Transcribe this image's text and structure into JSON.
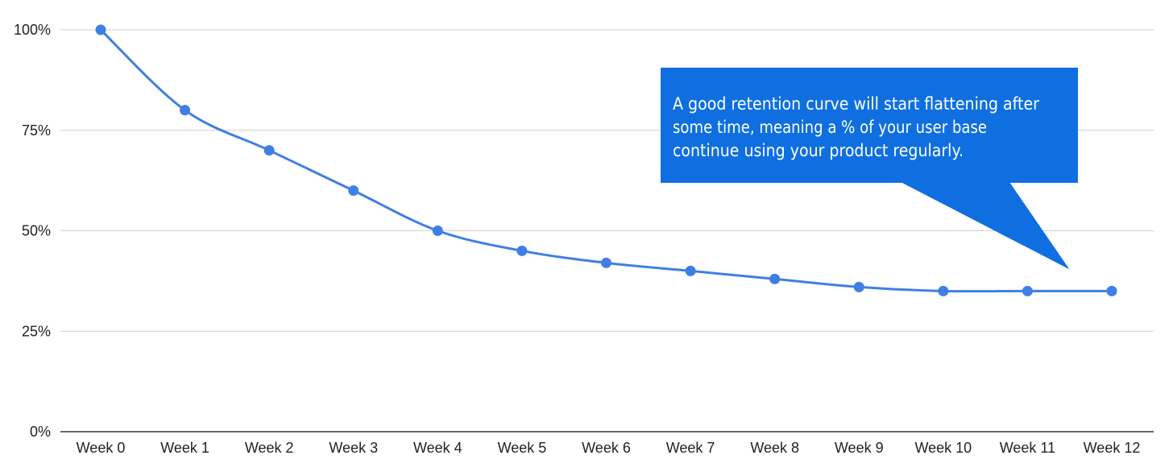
{
  "chart_data": {
    "type": "line",
    "categories": [
      "Week 0",
      "Week 1",
      "Week 2",
      "Week 3",
      "Week 4",
      "Week 5",
      "Week 6",
      "Week 7",
      "Week 8",
      "Week 9",
      "Week 10",
      "Week 11",
      "Week 12"
    ],
    "series": [
      {
        "values": [
          100,
          80,
          70,
          60,
          50,
          45,
          42,
          40,
          38,
          36,
          35,
          35,
          35
        ]
      }
    ],
    "y_ticks": [
      "0%",
      "25%",
      "50%",
      "75%",
      "100%"
    ],
    "ylim": [
      0,
      100
    ],
    "grid": true,
    "line_color": "#3f7fe3",
    "annotation": {
      "lines": [
        "A good retention curve will start flattening after",
        "some time, meaning a % of your user base",
        "continue using your product regularly."
      ],
      "fill": "#0f6fe0",
      "points_to": {
        "category": "Week 11",
        "value": 40
      }
    }
  }
}
